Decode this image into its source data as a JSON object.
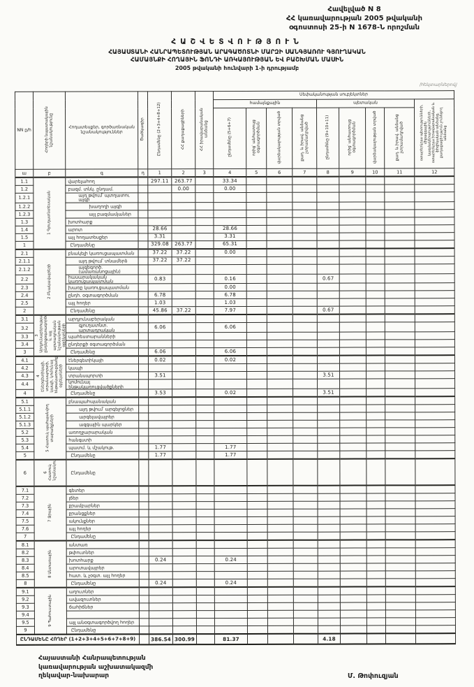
{
  "page": {
    "appendix": [
      "Հավելված N 8",
      "ՀՀ կառավարության 2005 թվականի",
      "օգոստոսի 25-ի N 1678-Ն որոշման"
    ],
    "title": "ՀԱՇՎԵՏՎՈՒԹՅՈՒՆ",
    "subtitle1": "ՀԱՅԱՍՏԱՆԻ ՀԱՆՐԱՊԵՏՈՒԹՅԱՆ ԱՐԱԳԱԾՈՏՆԻ ՄԱՐԶԻ ՍԱՆԳՅԱՌՈՒ ԳՅՈՒՂԱԿԱՆ",
    "subtitle2": "ՀԱՄԱՅՆՔԻ ՀՈՂԱՅԻՆ ՖՈՆԴԻ ԱՌԿԱՅՈՒԹՅԱՆ ԵՎ ԲԱՇԽՄԱՆ ՄԱՍԻՆ",
    "subtitle3": "2005 թվականի հունվարի 1-ի դրությամբ",
    "units_note": "/հեկտարներով/"
  },
  "table": {
    "ownership_span": "Սեփականության սուբյեկտներ",
    "group_left": "համայնքային",
    "group_right": "պետական",
    "cols": {
      "a": "NN ը/հ",
      "b": "Հողերի նպատակային նշանակությունը",
      "c": "Հողատեսքեր, գործառնական նշանակություններ",
      "d": "Ծածկագիր",
      "c1": "Ընդամենը (2+3+4+8+12)",
      "c2": "ՀՀ քաղաքացիների",
      "c3": "ՀՀ իրավաբանական անձանց",
      "c4": "ընդամենը (5+6+7)",
      "c5": "որից՝ անհատույց օգտագործման",
      "c6": "վարձակալության տրված",
      "c7": "քաղ. և իրավ. անձանց չտրամադրված",
      "c8": "ընդամենը (9+10+11)",
      "c9": "որից՝ անհատույց օգտագործման",
      "c10": "վարձակալության տրված",
      "c11": "քաղ. և իրավ. անձանց չտրամադրված",
      "c12": "օտարերկրյա պետությունների, միջազգային կազմակերպությունների, օտարերկրյա իրավաբանական և ֆիզիկական անձանց, քաղաքացիություն չունեցող անձանց"
    },
    "letter_row": [
      "ա",
      "բ",
      "գ",
      "դ",
      "1",
      "2",
      "3",
      "4",
      "5",
      "6",
      "7",
      "8",
      "9",
      "10",
      "11",
      "12"
    ],
    "sections": [
      {
        "label": "1 Գյուղատնտեսական",
        "rows": [
          {
            "num": "1.1",
            "label": "վարելահող",
            "v": {
              "1": "297.11",
              "2": "263.77",
              "4": "33.34"
            }
          },
          {
            "num": "1.2",
            "label": "բազմ. տնկ. ընդամ.",
            "v": {
              "2": "0.00",
              "4": "0.00"
            }
          },
          {
            "num": "1.2.1",
            "label": "այդ թվում՝ պտղատու այգի",
            "indent": 1
          },
          {
            "num": "1.2.2",
            "label": "խաղողի այգի",
            "indent": 2
          },
          {
            "num": "1.2.3",
            "label": "այլ բազմամյաներ",
            "indent": 2
          },
          {
            "num": "1.3",
            "label": "խոտհարք"
          },
          {
            "num": "1.4",
            "label": "արոտ",
            "v": {
              "1": "28.66",
              "4": "28.66"
            }
          },
          {
            "num": "1.5",
            "label": "այլ հողատեսքեր",
            "v": {
              "1": "3.31",
              "4": "3.31"
            }
          },
          {
            "num": "1",
            "label": "Ընդամենը",
            "total": true,
            "v": {
              "1": "329.08",
              "2": "263.77",
              "4": "65.31"
            }
          }
        ]
      },
      {
        "label": "2 Բնակավայրերի",
        "rows": [
          {
            "num": "2.1",
            "label": "բնակելի կառուցապատման",
            "v": {
              "1": "37.22",
              "2": "37.22",
              "4": "0.00"
            }
          },
          {
            "num": "2.1.1",
            "label": "այդ թվում՝ տնամերձ",
            "indent": 1,
            "v": {
              "1": "37.22",
              "2": "37.22"
            }
          },
          {
            "num": "2.1.2",
            "label": "այգեգործ. (ամառանոցային)",
            "indent": 1
          },
          {
            "num": "2.2",
            "label": "հասարակական կառուցապատման",
            "v": {
              "1": "0.83",
              "4": "0.16",
              "8": "0.67"
            }
          },
          {
            "num": "2.3",
            "label": "խառը կառուցապատման",
            "v": {
              "4": "0.00"
            }
          },
          {
            "num": "2.4",
            "label": "ընդհ. օգտագործման",
            "v": {
              "1": "6.78",
              "4": "6.78"
            }
          },
          {
            "num": "2.5",
            "label": "այլ հողեր",
            "v": {
              "1": "1.03",
              "4": "1.03"
            }
          },
          {
            "num": "2",
            "label": "Ընդամենը",
            "total": true,
            "v": {
              "1": "45.86",
              "2": "37.22",
              "4": "7.97",
              "8": "0.67"
            }
          }
        ]
      },
      {
        "label": "3 Արդյունաբերության, ընդերքօգտագործման և այլ արտադրական նշանակության օբյեկտների",
        "rows": [
          {
            "num": "3.1",
            "label": "արդյունաբերական"
          },
          {
            "num": "3.2",
            "label": "գյուղատնտ. արտադրական",
            "indent": 1,
            "v": {
              "1": "6.06",
              "4": "6.06"
            }
          },
          {
            "num": "3.3",
            "label": "պահեստարանների"
          },
          {
            "num": "3.4",
            "label": "ընդերքի օգտագործման"
          },
          {
            "num": "3",
            "label": "Ընդամենը",
            "total": true,
            "v": {
              "1": "6.06",
              "4": "6.06"
            }
          }
        ]
      },
      {
        "label": "4 Էներգետիկայի, տրանսպորտի, կապի, կոմունալ ենթակառուցվածքների օբյեկտների",
        "rows": [
          {
            "num": "4.1",
            "label": "էներգետիկայի",
            "v": {
              "1": "0.02",
              "4": "0.02"
            }
          },
          {
            "num": "4.2",
            "label": "կապի"
          },
          {
            "num": "4.3",
            "label": "տրանսպորտի",
            "v": {
              "1": "3.51",
              "8": "3.51"
            }
          },
          {
            "num": "4.4",
            "label": "կոմունալ ենթակառուցվածքների"
          },
          {
            "num": "4",
            "label": "Ընդամենը",
            "total": true,
            "v": {
              "1": "3.53",
              "4": "0.02",
              "8": "3.51"
            }
          }
        ]
      },
      {
        "label": "5 Հատուկ պահպանվող տարածքների",
        "rows": [
          {
            "num": "5.1",
            "label": "բնապահպանական"
          },
          {
            "num": "5.1.1",
            "label": "այդ թվում՝ արգելոցներ",
            "indent": 1
          },
          {
            "num": "5.1.2",
            "label": "արգելավայրեր",
            "indent": 1
          },
          {
            "num": "5.1.3",
            "label": "ազգային պարկեր",
            "indent": 1
          },
          {
            "num": "5.2",
            "label": "առողջարարական"
          },
          {
            "num": "5.3",
            "label": "հանգստի"
          },
          {
            "num": "5.4",
            "label": "պատմ. և մշակութ.",
            "v": {
              "1": "1.77",
              "4": "1.77"
            }
          },
          {
            "num": "5",
            "label": "Ընդամենը",
            "total": true,
            "v": {
              "1": "1.77",
              "4": "1.77"
            }
          }
        ]
      },
      {
        "label": "6 Հատուկ նշանակության",
        "tall": true,
        "rows": [
          {
            "num": "6",
            "label": "Ընդամենը",
            "total": true
          }
        ]
      },
      {
        "label": "7 Ջրային",
        "rows": [
          {
            "num": "7.1",
            "label": "գետեր"
          },
          {
            "num": "7.2",
            "label": "լճեր"
          },
          {
            "num": "7.3",
            "label": "ջրամբարներ"
          },
          {
            "num": "7.4",
            "label": "ջրանցքներ"
          },
          {
            "num": "7.5",
            "label": "ակունքներ"
          },
          {
            "num": "7.6",
            "label": "այլ հողեր"
          },
          {
            "num": "7",
            "label": "Ընդամենը",
            "total": true
          }
        ]
      },
      {
        "label": "8 Անտառային",
        "rows": [
          {
            "num": "8.1",
            "label": "անտառ"
          },
          {
            "num": "8.2",
            "label": "թփուտներ"
          },
          {
            "num": "8.3",
            "label": "խոտհարք",
            "v": {
              "1": "0.24",
              "4": "0.24"
            }
          },
          {
            "num": "8.4",
            "label": "արոտավայրեր"
          },
          {
            "num": "8.5",
            "label": "հատ. և չօգտ. այլ հողեր"
          },
          {
            "num": "8",
            "label": "Ընդամենը",
            "total": true,
            "v": {
              "1": "0.24",
              "4": "0.24"
            }
          }
        ]
      },
      {
        "label": "9 Պահուստային",
        "rows": [
          {
            "num": "9.1",
            "label": "աղուտներ"
          },
          {
            "num": "9.2",
            "label": "ավազուտներ"
          },
          {
            "num": "9.3",
            "label": "ճահիճներ"
          },
          {
            "num": "9.4",
            "label": ""
          },
          {
            "num": "9.5",
            "label": "այլ անօգտագործվող հողեր"
          },
          {
            "num": "9",
            "label": "Ընդամենը",
            "total": true
          }
        ]
      }
    ],
    "grand_total": {
      "label": "ԸՆԴԱՄԵՆԸ ՀՈՂԵՐ (1+2+3+4+5+6+7+8+9)",
      "v": {
        "1": "386.54",
        "2": "300.99",
        "4": "81.37",
        "8": "4.18"
      }
    }
  },
  "footer": {
    "left1": "Հայաստանի Հանրապետության",
    "left2": "կառավարության աշխատակազմի",
    "left3": "ղեկավար-նախարար",
    "signature": "Մ. Թոփուզյան"
  }
}
